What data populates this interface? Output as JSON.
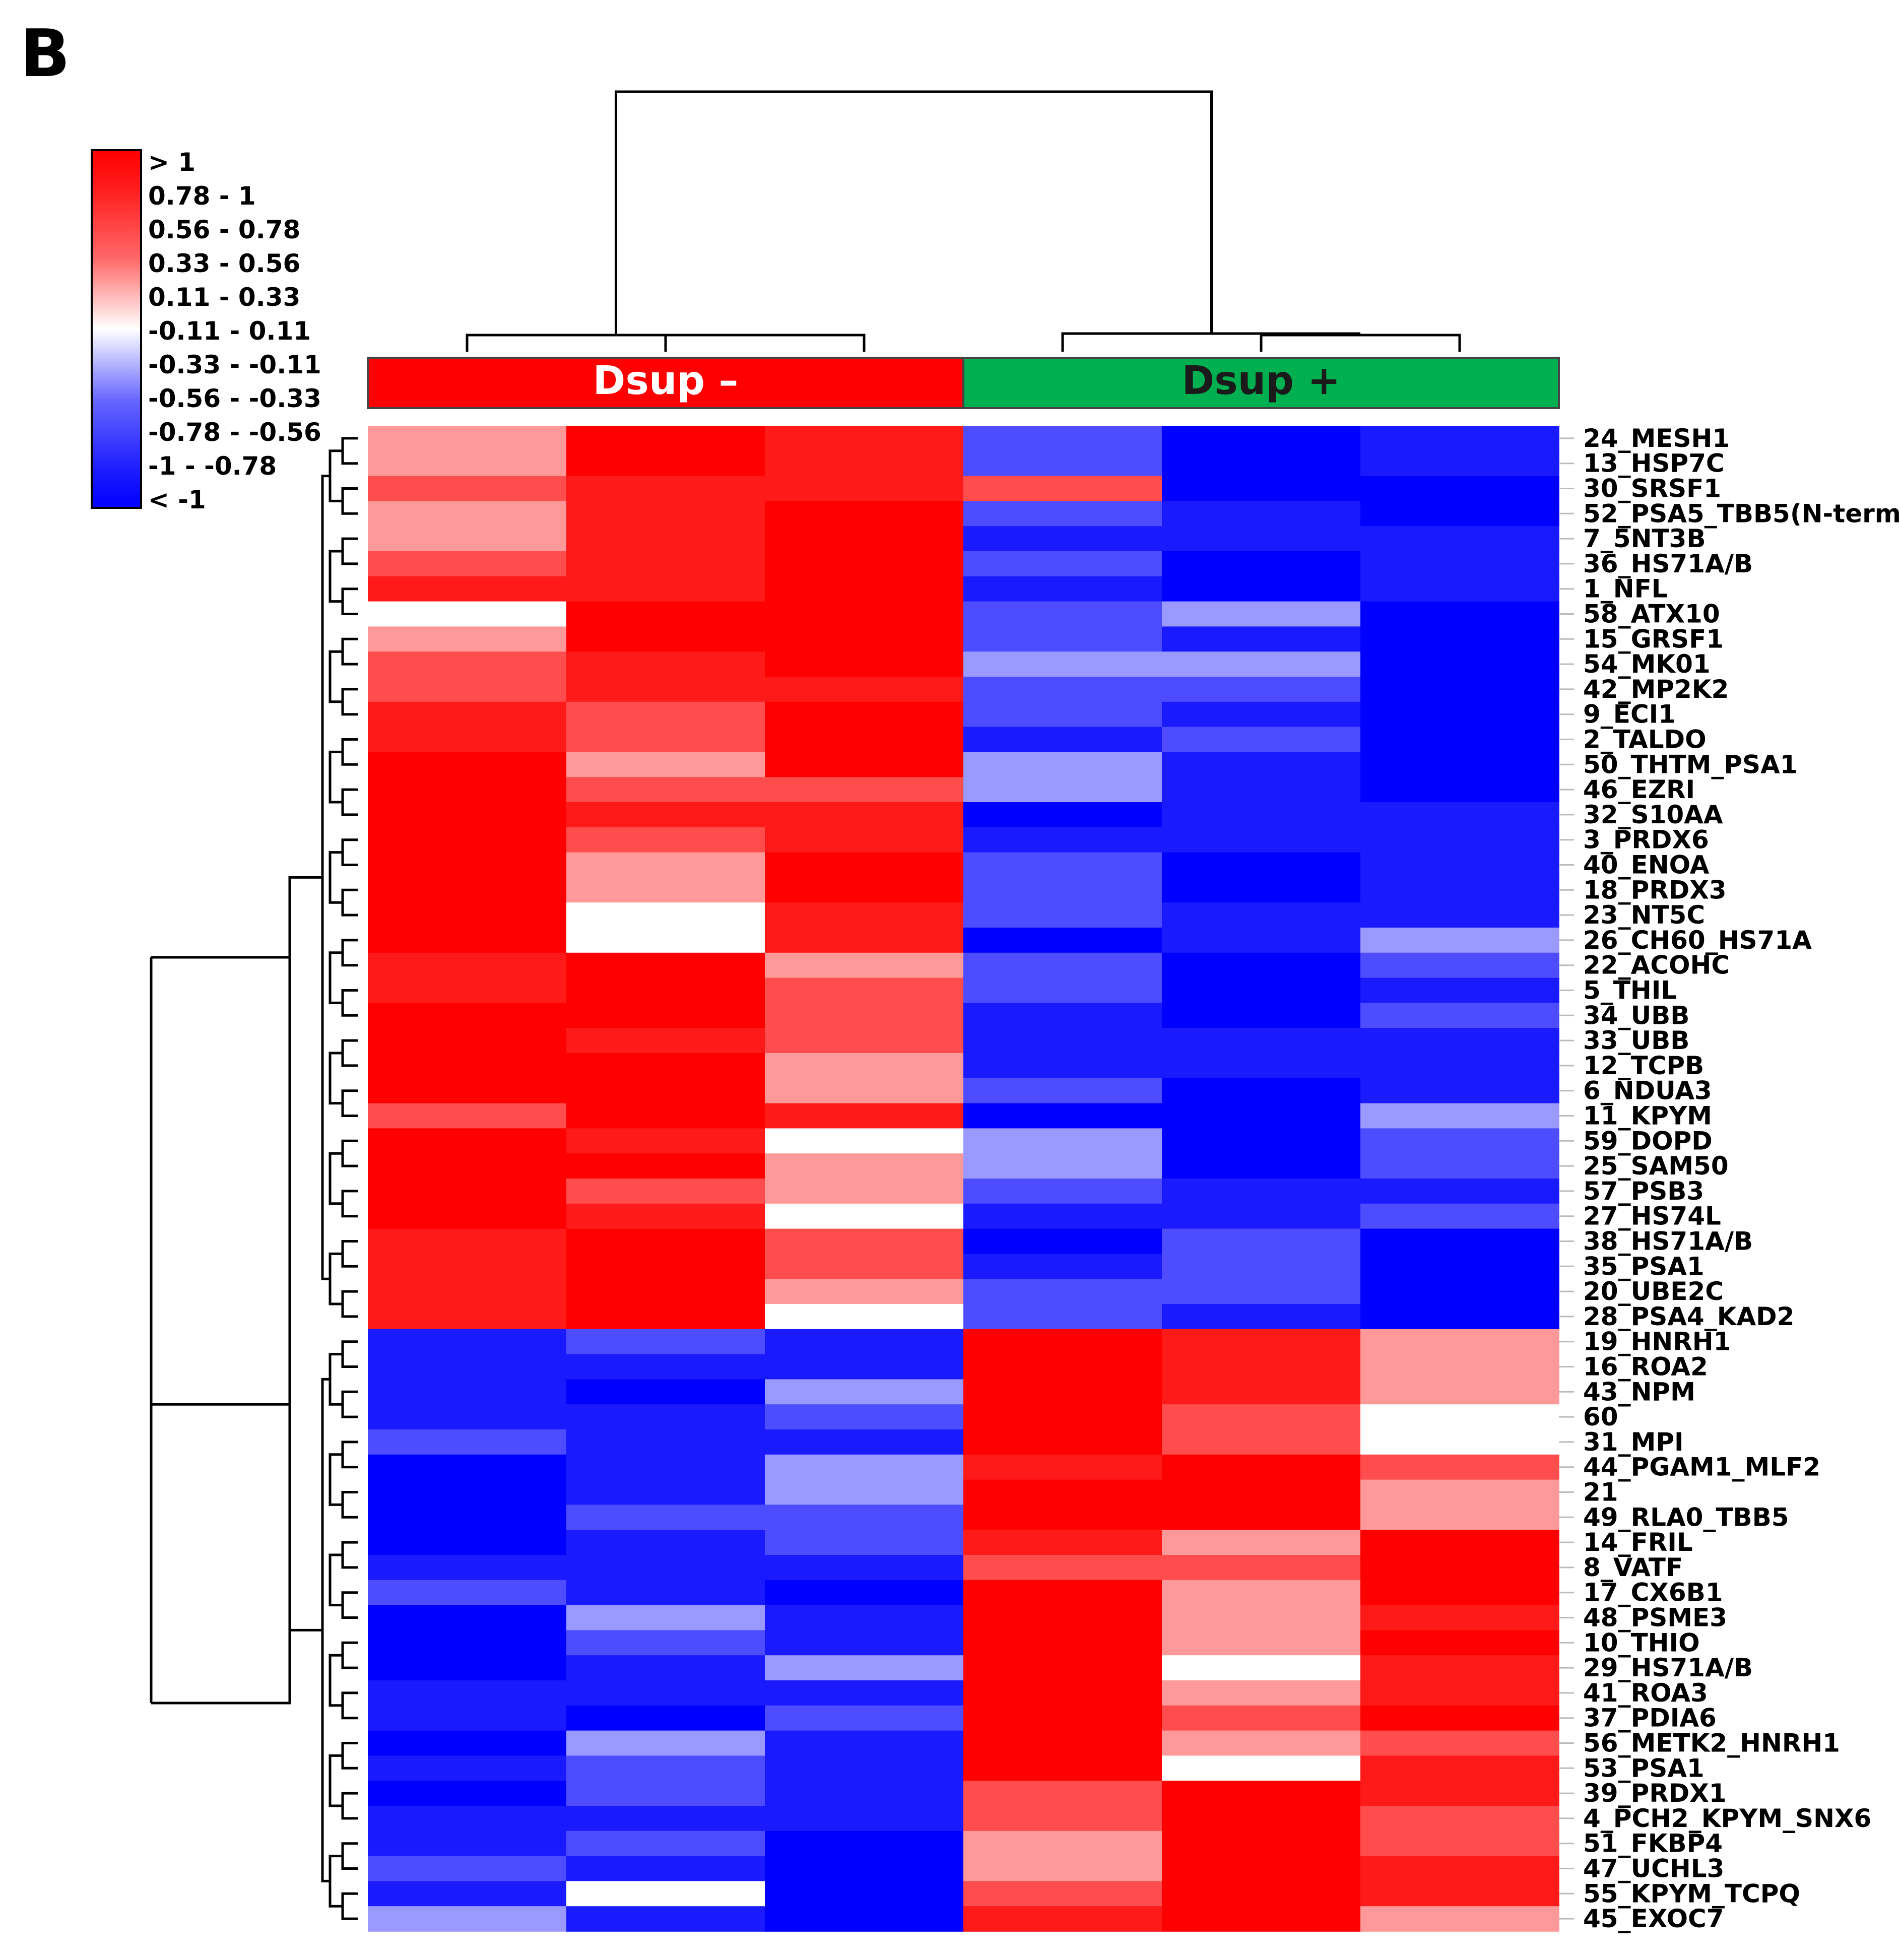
{
  "panel_label": "B",
  "chart_data": {
    "type": "heatmap",
    "title": "",
    "group_labels": [
      "Dsup –",
      "Dsup +"
    ],
    "group_colors": [
      "#ff0000",
      "#00b050"
    ],
    "legend": {
      "labels": [
        "> 1",
        "0.78 - 1",
        "0.56 - 0.78",
        "0.33 - 0.56",
        "0.11 - 0.33",
        "-0.11 - 0.11",
        "-0.33 - -0.11",
        "-0.56 - -0.33",
        "-0.78 - -0.56",
        "-1 - -0.78",
        "< -1"
      ],
      "colors": [
        "#ff0000",
        "#ff1a1a",
        "#ff4d4d",
        "#ff9999",
        "#ffffff",
        "#ffffff",
        "#9999ff",
        "#4d4dff",
        "#1a1aff",
        "#0000ff",
        "#0000ff"
      ]
    },
    "rows": [
      "24_MESH1",
      "13_HSP7C",
      "30_SRSF1",
      "52_PSA5_TBB5(N-term)",
      "7_5NT3B",
      "36_HS71A/B",
      "1_NFL",
      "58_ATX10",
      "15_GRSF1",
      "54_MK01",
      "42_MP2K2",
      "9_ECI1",
      "2_TALDO",
      "50_THTM_PSA1",
      "46_EZRI",
      "32_S10AA",
      "3_PRDX6",
      "40_ENOA",
      "18_PRDX3",
      "23_NT5C",
      "26_CH60_HS71A",
      "22_ACOHC",
      "5_THIL",
      "34_UBB",
      "33_UBB",
      "12_TCPB",
      "6_NDUA3",
      "11_KPYM",
      "59_DOPD",
      "25_SAM50",
      "57_PSB3",
      "27_HS74L",
      "38_HS71A/B",
      "35_PSA1",
      "20_UBE2C",
      "28_PSA4_KAD2",
      "19_HNRH1",
      "16_ROA2",
      "43_NPM",
      "60",
      "31_MPI",
      "44_PGAM1_MLF2",
      "21",
      "49_RLA0_TBB5",
      "14_FRIL",
      "8_VATF",
      "17_CX6B1",
      "48_PSME3",
      "10_THIO",
      "29_HS71A/B",
      "41_ROA3",
      "37_PDIA6",
      "56_METK2_HNRH1",
      "53_PSA1",
      "39_PRDX1",
      "4_PCH2_KPYM_SNX6",
      "51_FKBP4",
      "47_UCHL3",
      "55_KPYM_TCPQ",
      "45_EXOC7"
    ],
    "values": [
      [
        0.45,
        1.2,
        1.0,
        -0.7,
        -1.2,
        -1.0
      ],
      [
        0.45,
        1.2,
        1.0,
        -0.7,
        -1.2,
        -1.0
      ],
      [
        0.7,
        1.0,
        1.0,
        0.6,
        -1.2,
        -1.2
      ],
      [
        0.45,
        1.0,
        1.2,
        -0.7,
        -1.0,
        -1.2
      ],
      [
        0.45,
        1.0,
        1.2,
        -1.0,
        -1.0,
        -1.0
      ],
      [
        0.7,
        1.0,
        1.2,
        -0.7,
        -1.2,
        -1.0
      ],
      [
        1.0,
        1.0,
        1.2,
        -1.0,
        -1.2,
        -1.0
      ],
      [
        0.2,
        1.2,
        1.2,
        -0.7,
        -0.45,
        -1.2
      ],
      [
        0.45,
        1.2,
        1.2,
        -0.7,
        -1.0,
        -1.2
      ],
      [
        0.7,
        1.0,
        1.2,
        -0.45,
        -0.45,
        -1.2
      ],
      [
        0.7,
        1.0,
        1.0,
        -0.7,
        -0.7,
        -1.2
      ],
      [
        1.0,
        0.7,
        1.2,
        -0.7,
        -1.0,
        -1.2
      ],
      [
        1.0,
        0.7,
        1.2,
        -1.0,
        -0.7,
        -1.2
      ],
      [
        1.2,
        0.45,
        1.2,
        -0.45,
        -1.0,
        -1.2
      ],
      [
        1.2,
        0.7,
        0.7,
        -0.45,
        -1.0,
        -1.2
      ],
      [
        1.2,
        1.0,
        1.0,
        -1.2,
        -1.0,
        -1.0
      ],
      [
        1.2,
        0.7,
        1.0,
        -1.0,
        -1.0,
        -1.0
      ],
      [
        1.2,
        0.45,
        1.2,
        -0.7,
        -1.2,
        -1.0
      ],
      [
        1.2,
        0.45,
        1.2,
        -0.7,
        -1.2,
        -1.0
      ],
      [
        1.2,
        0.2,
        1.0,
        -0.7,
        -1.0,
        -1.0
      ],
      [
        1.2,
        0.2,
        1.0,
        -1.2,
        -1.0,
        -0.45
      ],
      [
        1.0,
        1.2,
        0.45,
        -0.7,
        -1.2,
        -0.7
      ],
      [
        1.0,
        1.2,
        0.7,
        -0.7,
        -1.2,
        -1.0
      ],
      [
        1.2,
        1.2,
        0.7,
        -1.0,
        -1.2,
        -0.7
      ],
      [
        1.2,
        1.0,
        0.7,
        -1.0,
        -1.0,
        -1.0
      ],
      [
        1.2,
        1.2,
        0.45,
        -1.0,
        -1.0,
        -1.0
      ],
      [
        1.2,
        1.2,
        0.45,
        -0.7,
        -1.2,
        -1.0
      ],
      [
        0.7,
        1.2,
        1.0,
        -1.2,
        -1.2,
        -0.45
      ],
      [
        1.2,
        1.0,
        0.2,
        -0.45,
        -1.2,
        -0.7
      ],
      [
        1.2,
        1.2,
        0.45,
        -0.45,
        -1.2,
        -0.7
      ],
      [
        1.2,
        0.7,
        0.45,
        -0.7,
        -1.0,
        -1.0
      ],
      [
        1.2,
        1.0,
        0.2,
        -1.0,
        -1.0,
        -0.7
      ],
      [
        1.0,
        1.2,
        0.7,
        -1.2,
        -0.7,
        -1.2
      ],
      [
        1.0,
        1.2,
        0.7,
        -1.0,
        -0.7,
        -1.2
      ],
      [
        1.0,
        1.2,
        0.45,
        -0.7,
        -0.7,
        -1.2
      ],
      [
        1.0,
        1.2,
        0.2,
        -0.7,
        -1.0,
        -1.2
      ],
      [
        -1.0,
        -0.7,
        -1.0,
        1.2,
        1.0,
        0.45
      ],
      [
        -1.0,
        -1.0,
        -1.0,
        1.2,
        1.0,
        0.45
      ],
      [
        -1.0,
        -1.2,
        -0.45,
        1.2,
        1.0,
        0.45
      ],
      [
        -1.0,
        -1.0,
        -0.7,
        1.2,
        0.7,
        0.2
      ],
      [
        -0.7,
        -1.0,
        -1.0,
        1.2,
        0.7,
        0.2
      ],
      [
        -1.2,
        -1.0,
        -0.45,
        1.0,
        1.2,
        0.7
      ],
      [
        -1.2,
        -1.0,
        -0.45,
        1.2,
        1.2,
        0.45
      ],
      [
        -1.2,
        -0.7,
        -0.7,
        1.2,
        1.2,
        0.45
      ],
      [
        -1.2,
        -1.0,
        -0.7,
        1.0,
        0.45,
        1.2
      ],
      [
        -1.0,
        -1.0,
        -1.0,
        0.7,
        0.7,
        1.2
      ],
      [
        -0.7,
        -1.0,
        -1.2,
        1.2,
        0.45,
        1.2
      ],
      [
        -1.2,
        -0.45,
        -1.0,
        1.2,
        0.45,
        1.0
      ],
      [
        -1.2,
        -0.7,
        -1.0,
        1.2,
        0.45,
        1.2
      ],
      [
        -1.2,
        -1.0,
        -0.45,
        1.2,
        0.2,
        1.0
      ],
      [
        -1.0,
        -1.0,
        -1.0,
        1.2,
        0.45,
        1.0
      ],
      [
        -1.0,
        -1.2,
        -0.7,
        1.2,
        0.7,
        1.2
      ],
      [
        -1.2,
        -0.45,
        -1.0,
        1.2,
        0.45,
        0.7
      ],
      [
        -1.0,
        -0.7,
        -1.0,
        1.2,
        0.2,
        1.0
      ],
      [
        -1.2,
        -0.7,
        -1.0,
        0.7,
        1.2,
        1.0
      ],
      [
        -1.0,
        -1.0,
        -1.0,
        0.7,
        1.2,
        0.7
      ],
      [
        -1.0,
        -0.7,
        -1.2,
        0.45,
        1.2,
        0.7
      ],
      [
        -0.7,
        -1.0,
        -1.2,
        0.45,
        1.2,
        1.0
      ],
      [
        -1.0,
        0.2,
        -1.2,
        0.7,
        1.2,
        1.0
      ],
      [
        -0.45,
        -1.0,
        -1.2,
        1.0,
        1.2,
        0.45
      ]
    ]
  }
}
